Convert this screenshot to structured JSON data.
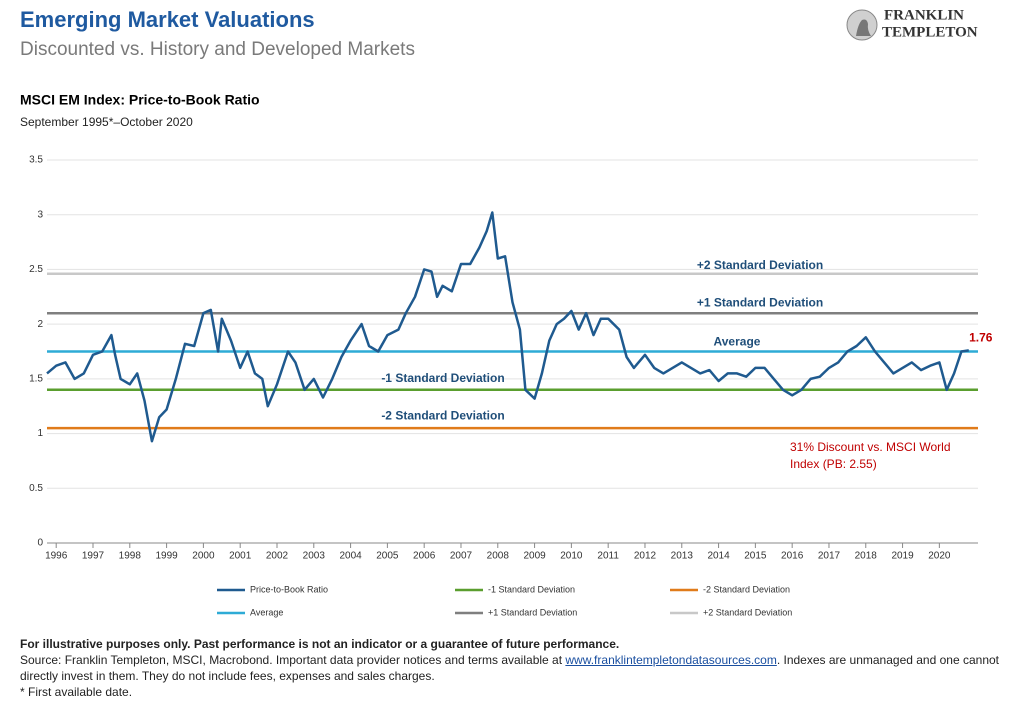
{
  "header": {
    "title": "Emerging Market Valuations",
    "subtitle": "Discounted vs. History and Developed Markets",
    "logo": [
      "FRANKLIN",
      "TEMPLETON"
    ]
  },
  "chart_data": {
    "type": "line",
    "title": "MSCI EM Index: Price-to-Book Ratio",
    "subtitle": "September 1995*–October 2020",
    "x": [
      1995.75,
      1996.0,
      1996.25,
      1996.5,
      1996.75,
      1997.0,
      1997.25,
      1997.5,
      1997.6,
      1997.75,
      1998.0,
      1998.2,
      1998.4,
      1998.6,
      1998.8,
      1999.0,
      1999.25,
      1999.5,
      1999.75,
      2000.0,
      2000.2,
      2000.4,
      2000.5,
      2000.75,
      2001.0,
      2001.2,
      2001.4,
      2001.6,
      2001.75,
      2002.0,
      2002.3,
      2002.5,
      2002.75,
      2003.0,
      2003.25,
      2003.5,
      2003.75,
      2004.0,
      2004.3,
      2004.5,
      2004.75,
      2005.0,
      2005.3,
      2005.5,
      2005.75,
      2006.0,
      2006.2,
      2006.35,
      2006.5,
      2006.75,
      2007.0,
      2007.25,
      2007.5,
      2007.7,
      2007.85,
      2008.0,
      2008.2,
      2008.4,
      2008.6,
      2008.75,
      2009.0,
      2009.2,
      2009.4,
      2009.6,
      2009.8,
      2010.0,
      2010.2,
      2010.4,
      2010.6,
      2010.8,
      2011.0,
      2011.3,
      2011.5,
      2011.7,
      2012.0,
      2012.25,
      2012.5,
      2012.75,
      2013.0,
      2013.25,
      2013.5,
      2013.75,
      2014.0,
      2014.25,
      2014.5,
      2014.75,
      2015.0,
      2015.25,
      2015.5,
      2015.75,
      2016.0,
      2016.25,
      2016.5,
      2016.75,
      2017.0,
      2017.25,
      2017.5,
      2017.75,
      2018.0,
      2018.25,
      2018.5,
      2018.75,
      2019.0,
      2019.25,
      2019.5,
      2019.75,
      2020.0,
      2020.2,
      2020.4,
      2020.6,
      2020.8
    ],
    "series": [
      {
        "name": "Price-to-Book Ratio",
        "color": "#1f5a8f",
        "values": [
          1.55,
          1.62,
          1.65,
          1.5,
          1.55,
          1.72,
          1.75,
          1.9,
          1.72,
          1.5,
          1.45,
          1.55,
          1.3,
          0.93,
          1.15,
          1.22,
          1.5,
          1.82,
          1.8,
          2.1,
          2.13,
          1.75,
          2.05,
          1.85,
          1.6,
          1.75,
          1.55,
          1.5,
          1.25,
          1.45,
          1.75,
          1.65,
          1.4,
          1.5,
          1.33,
          1.5,
          1.7,
          1.85,
          2.0,
          1.8,
          1.75,
          1.9,
          1.95,
          2.1,
          2.25,
          2.5,
          2.48,
          2.25,
          2.35,
          2.3,
          2.55,
          2.55,
          2.7,
          2.85,
          3.02,
          2.6,
          2.62,
          2.2,
          1.95,
          1.4,
          1.32,
          1.55,
          1.85,
          2.0,
          2.05,
          2.12,
          1.95,
          2.1,
          1.9,
          2.05,
          2.05,
          1.95,
          1.7,
          1.6,
          1.72,
          1.6,
          1.55,
          1.6,
          1.65,
          1.6,
          1.55,
          1.58,
          1.48,
          1.55,
          1.55,
          1.52,
          1.6,
          1.6,
          1.5,
          1.4,
          1.35,
          1.4,
          1.5,
          1.52,
          1.6,
          1.65,
          1.75,
          1.8,
          1.88,
          1.75,
          1.65,
          1.55,
          1.6,
          1.65,
          1.58,
          1.62,
          1.65,
          1.4,
          1.55,
          1.75,
          1.76
        ],
        "label_last": true,
        "label_color": "#c00000"
      }
    ],
    "reference_lines": [
      {
        "name": "-1 Standard Deviation",
        "value": 1.4,
        "color": "#5a9e2e"
      },
      {
        "name": "-2 Standard Deviation",
        "value": 1.05,
        "color": "#e07b1a"
      },
      {
        "name": "Average",
        "value": 1.75,
        "color": "#2eabd6"
      },
      {
        "name": "+1 Standard Deviation",
        "value": 2.1,
        "color": "#7f7f7f"
      },
      {
        "name": "+2 Standard Deviation",
        "value": 2.46,
        "color": "#c8c8c8"
      }
    ],
    "annotation": [
      "31% Discount vs. MSCI World",
      "Index (PB: 2.55)"
    ],
    "xlim": [
      1995.75,
      2021.05
    ],
    "xticks": [
      1996,
      1997,
      1998,
      1999,
      2000,
      2001,
      2002,
      2003,
      2004,
      2005,
      2006,
      2007,
      2008,
      2009,
      2010,
      2011,
      2012,
      2013,
      2014,
      2015,
      2016,
      2017,
      2018,
      2019,
      2020
    ],
    "ylim": [
      0,
      3.5
    ],
    "yticks": [
      0,
      0.5,
      1,
      1.5,
      2,
      2.5,
      3,
      3.5
    ],
    "grid": true
  },
  "footer": {
    "disclaimer": "For illustrative purposes only. Past performance is not an indicator or a guarantee of future performance.",
    "source_before": "Source: Franklin Templeton, MSCI, Macrobond. Important data provider notices and terms available at ",
    "source_link": "www.franklintempletondatasources.com",
    "source_after": ". Indexes are unmanaged and one cannot directly invest in them. They do not include fees, expenses and sales charges.",
    "note": "* First available date."
  }
}
